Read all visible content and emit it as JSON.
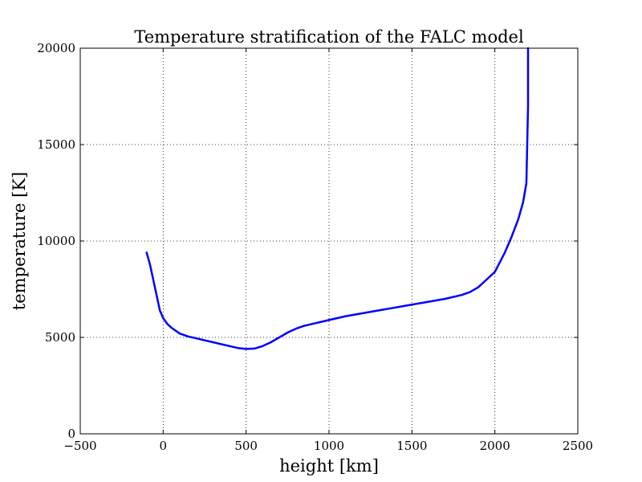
{
  "chart_data": {
    "type": "line",
    "title": "Temperature stratification of the FALC model",
    "xlabel": "height [km]",
    "ylabel": "temperature [K]",
    "xlim": [
      -500,
      2500
    ],
    "ylim": [
      0,
      20000
    ],
    "xticks": [
      -500,
      0,
      500,
      1000,
      1500,
      2000,
      2500
    ],
    "yticks": [
      0,
      5000,
      10000,
      15000,
      20000
    ],
    "xtick_labels": [
      "−500",
      "0",
      "500",
      "1000",
      "1500",
      "2000",
      "2500"
    ],
    "ytick_labels": [
      "0",
      "5000",
      "10000",
      "15000",
      "20000"
    ],
    "grid": true,
    "series": [
      {
        "color": "#0000ff",
        "x": [
          -100,
          -80,
          -60,
          -40,
          -20,
          0,
          25,
          50,
          100,
          150,
          200,
          300,
          400,
          450,
          500,
          550,
          600,
          650,
          700,
          750,
          800,
          850,
          900,
          1000,
          1100,
          1200,
          1300,
          1400,
          1500,
          1600,
          1700,
          1800,
          1850,
          1900,
          1950,
          2000,
          2030,
          2060,
          2100,
          2140,
          2170,
          2190,
          2195,
          2200,
          2200,
          2200
        ],
        "y": [
          9400,
          8800,
          8000,
          7200,
          6400,
          6000,
          5700,
          5500,
          5200,
          5050,
          4950,
          4750,
          4550,
          4450,
          4400,
          4420,
          4550,
          4750,
          5000,
          5250,
          5450,
          5600,
          5700,
          5900,
          6100,
          6250,
          6400,
          6550,
          6700,
          6850,
          7000,
          7200,
          7350,
          7600,
          8000,
          8400,
          8900,
          9400,
          10200,
          11100,
          12000,
          13000,
          15000,
          17000,
          19000,
          20000
        ]
      }
    ]
  }
}
